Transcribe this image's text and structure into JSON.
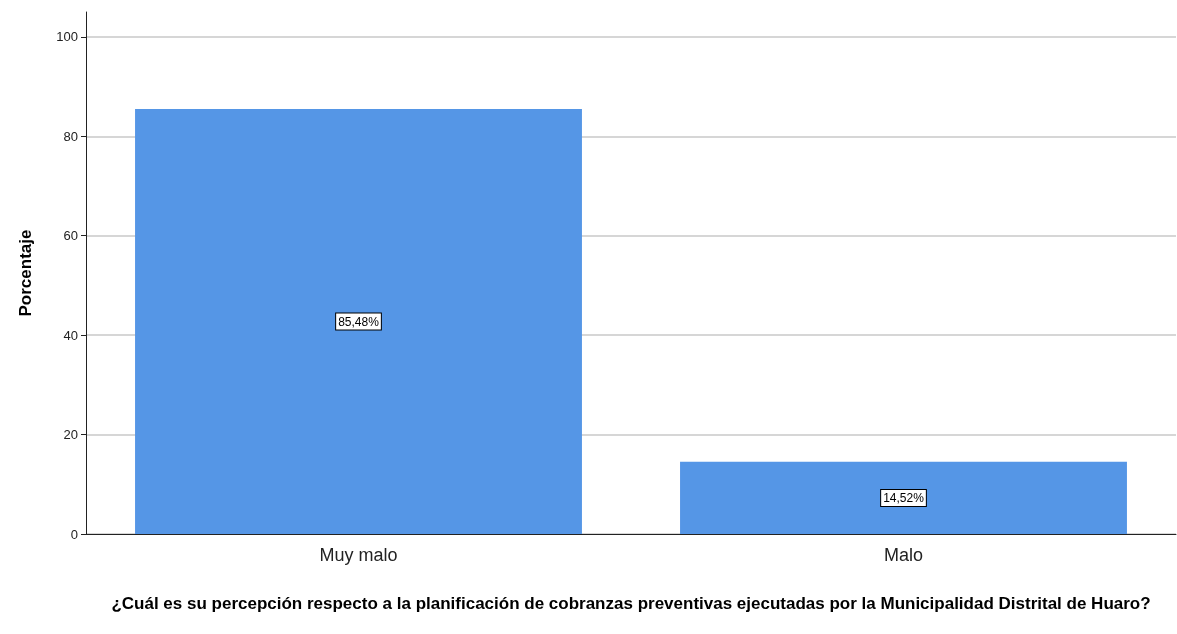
{
  "chart_data": {
    "type": "bar",
    "xlabel": "¿Cuál es su percepción respecto a la planificación de cobranzas preventivas ejecutadas por la Municipalidad Distrital de Huaro?",
    "ylabel": "Porcentaje",
    "categories": [
      "Muy malo",
      "Malo"
    ],
    "values": [
      85.48,
      14.52
    ],
    "value_labels": [
      "85,48%",
      "14,52%"
    ],
    "color": "#5596e6",
    "ylim": [
      0,
      105
    ],
    "yticks": [
      0,
      20,
      40,
      60,
      80,
      100
    ],
    "grid": "y"
  }
}
